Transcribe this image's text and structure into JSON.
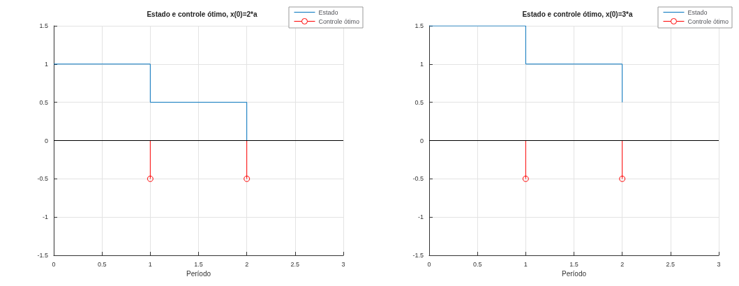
{
  "chart_data": [
    {
      "type": "step",
      "title": "Estado e controle ótimo, x(0)=2*a",
      "xlabel": "Período",
      "xlim": [
        0,
        3
      ],
      "xticks": [
        0,
        0.5,
        1,
        1.5,
        2,
        2.5,
        3
      ],
      "ylim": [
        -1.5,
        1.5
      ],
      "yticks": [
        -1.5,
        -1,
        -0.5,
        0,
        0.5,
        1,
        1.5
      ],
      "grid": true,
      "legend": "top right",
      "ref_lines": [
        {
          "axis": "y",
          "value": 0,
          "color": "#000000"
        }
      ],
      "series": [
        {
          "name": "Estado",
          "color": "#0072bd",
          "x": [
            0,
            1,
            2
          ],
          "values": [
            1,
            0.5,
            0
          ]
        },
        {
          "name": "Controle ótimo",
          "type": "lollipop",
          "marker": "circle",
          "color": "#ff0000",
          "x": [
            1,
            2
          ],
          "values": [
            -0.5,
            -0.5
          ]
        }
      ]
    },
    {
      "type": "step",
      "title": "Estado e controle ótimo, x(0)=3*a",
      "xlabel": "Período",
      "xlim": [
        0,
        3
      ],
      "xticks": [
        0,
        0.5,
        1,
        1.5,
        2,
        2.5,
        3
      ],
      "ylim": [
        -1.5,
        1.5
      ],
      "yticks": [
        -1.5,
        -1,
        -0.5,
        0,
        0.5,
        1,
        1.5
      ],
      "grid": true,
      "legend": "top right",
      "ref_lines": [
        {
          "axis": "y",
          "value": 0,
          "color": "#000000"
        }
      ],
      "series": [
        {
          "name": "Estado",
          "color": "#0072bd",
          "x": [
            0,
            1,
            2
          ],
          "values": [
            1.5,
            1,
            0.5
          ]
        },
        {
          "name": "Controle ótimo",
          "type": "lollipop",
          "marker": "circle",
          "color": "#ff0000",
          "x": [
            1,
            2
          ],
          "values": [
            -0.5,
            -0.5
          ]
        }
      ]
    }
  ]
}
